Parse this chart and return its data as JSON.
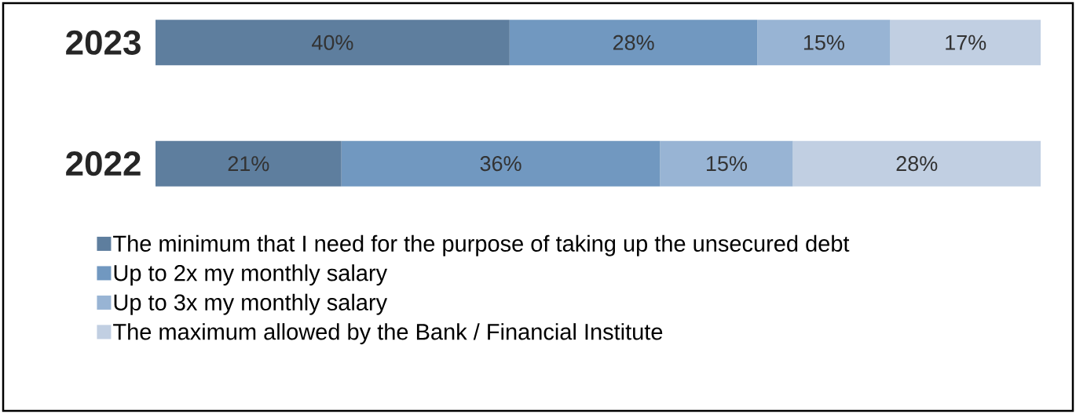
{
  "chart_data": {
    "type": "bar",
    "orientation": "horizontal",
    "stacked": true,
    "categories": [
      "2023",
      "2022"
    ],
    "series": [
      {
        "name": "The minimum that I need for the purpose of taking up the unsecured debt",
        "color": "#5e7e9e",
        "values": [
          40,
          21
        ],
        "value_labels": [
          "40%",
          "21%"
        ]
      },
      {
        "name": "Up to 2x my monthly salary",
        "color": "#7198c0",
        "values": [
          28,
          36
        ],
        "value_labels": [
          "28%",
          "36%"
        ]
      },
      {
        "name": "Up to 3x my monthly salary",
        "color": "#98b4d4",
        "values": [
          15,
          15
        ],
        "value_labels": [
          "15%",
          "15%"
        ]
      },
      {
        "name": "The maximum allowed by the Bank / Financial Institute",
        "color": "#c1cfe2",
        "values": [
          17,
          28
        ],
        "value_labels": [
          "17%",
          "28%"
        ]
      }
    ],
    "legend": "bottom"
  }
}
